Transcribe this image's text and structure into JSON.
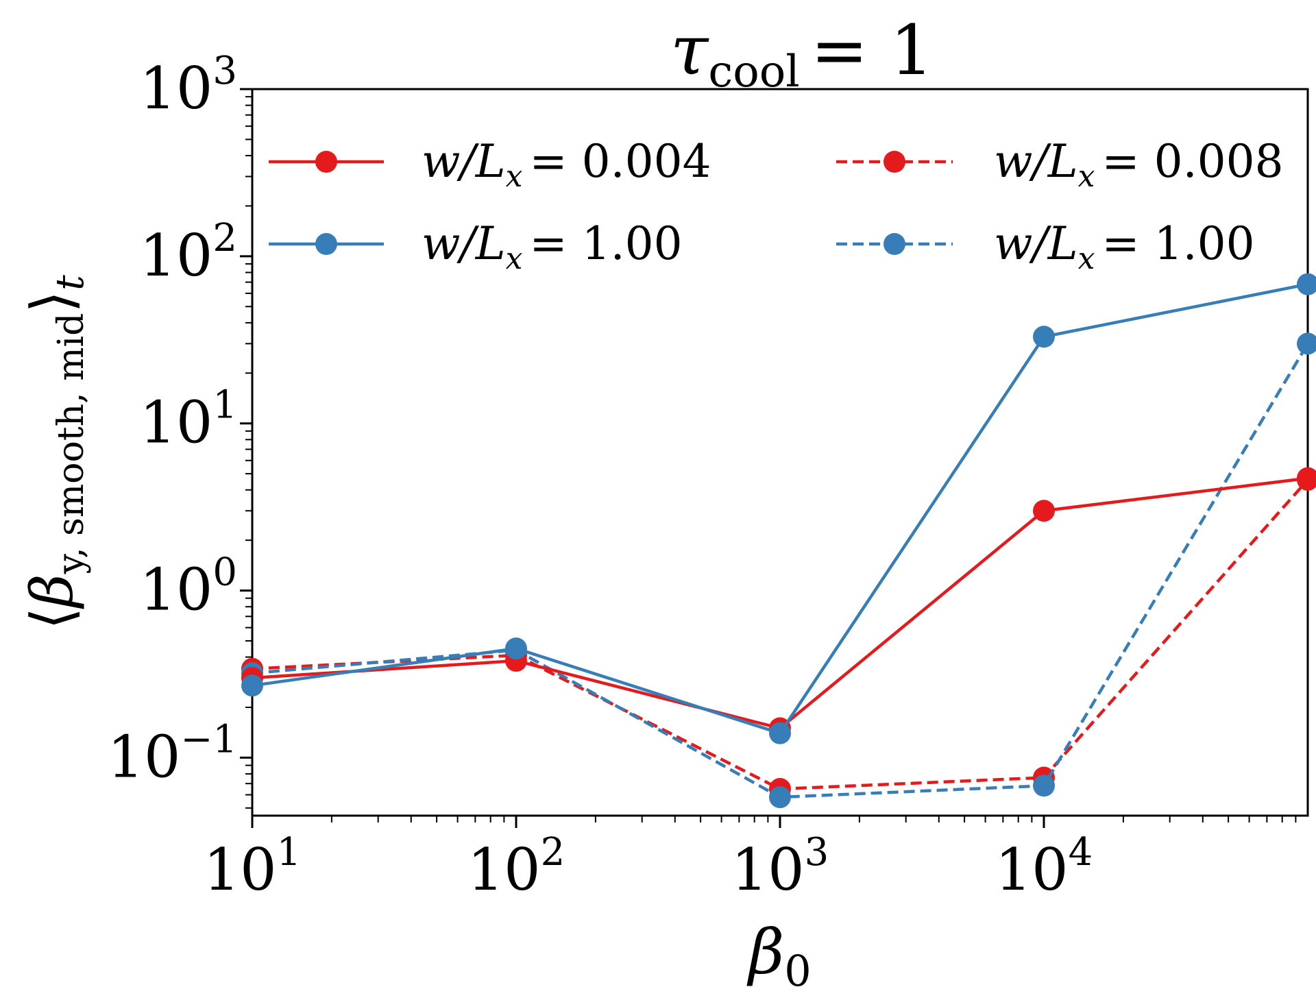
{
  "chart_data": {
    "type": "line",
    "title": "τ_cool = 1",
    "title_parts": {
      "symbol": "τ",
      "subscript": "cool",
      "rest": "= 1"
    },
    "xlabel": "β0",
    "xlabel_parts": {
      "symbol": "β",
      "subscript": "0"
    },
    "ylabel": "⟨β y, smooth, mid⟩ t",
    "ylabel_parts": {
      "open": "⟨",
      "symbol": "β",
      "subscript": "y, smooth, mid",
      "close": "⟩",
      "outer_subscript": "t"
    },
    "xscale": "log",
    "yscale": "log",
    "xlim": [
      10,
      100000
    ],
    "ylim": [
      0.045,
      1000
    ],
    "x_ticks": [
      {
        "value": 10,
        "base": "10",
        "exp": "1"
      },
      {
        "value": 100,
        "base": "10",
        "exp": "2"
      },
      {
        "value": 1000,
        "base": "10",
        "exp": "3"
      },
      {
        "value": 10000,
        "base": "10",
        "exp": "4"
      }
    ],
    "y_ticks": [
      {
        "value": 0.1,
        "base": "10",
        "exp": "−1"
      },
      {
        "value": 1,
        "base": "10",
        "exp": "0"
      },
      {
        "value": 10,
        "base": "10",
        "exp": "1"
      },
      {
        "value": 100,
        "base": "10",
        "exp": "2"
      },
      {
        "value": 1000,
        "base": "10",
        "exp": "3"
      }
    ],
    "legend_position": "top",
    "series": [
      {
        "name": "w/Lx = 0.004",
        "label_var": "w/L",
        "label_sub": "x",
        "label_val": "= 0.004",
        "color": "#e41a1c",
        "dash": "solid",
        "x": [
          10,
          100,
          1000,
          10000,
          100000
        ],
        "y": [
          0.3,
          0.38,
          0.15,
          3.0,
          4.7
        ]
      },
      {
        "name": "w/Lx = 1.00",
        "label_var": "w/L",
        "label_sub": "x",
        "label_val": "= 1.00",
        "color": "#377eb8",
        "dash": "solid",
        "x": [
          10,
          100,
          1000,
          10000,
          100000
        ],
        "y": [
          0.27,
          0.45,
          0.14,
          33,
          68
        ]
      },
      {
        "name": "w/Lx = 0.008",
        "label_var": "w/L",
        "label_sub": "x",
        "label_val": "= 0.008",
        "color": "#e41a1c",
        "dash": "dashed",
        "x": [
          10,
          100,
          1000,
          10000,
          100000
        ],
        "y": [
          0.34,
          0.41,
          0.065,
          0.076,
          4.6
        ]
      },
      {
        "name": "w/Lx = 1.00",
        "label_var": "w/L",
        "label_sub": "x",
        "label_val": "= 1.00",
        "color": "#377eb8",
        "dash": "dashed",
        "x": [
          10,
          100,
          1000,
          10000,
          100000
        ],
        "y": [
          0.32,
          0.44,
          0.058,
          0.068,
          30
        ]
      }
    ]
  }
}
